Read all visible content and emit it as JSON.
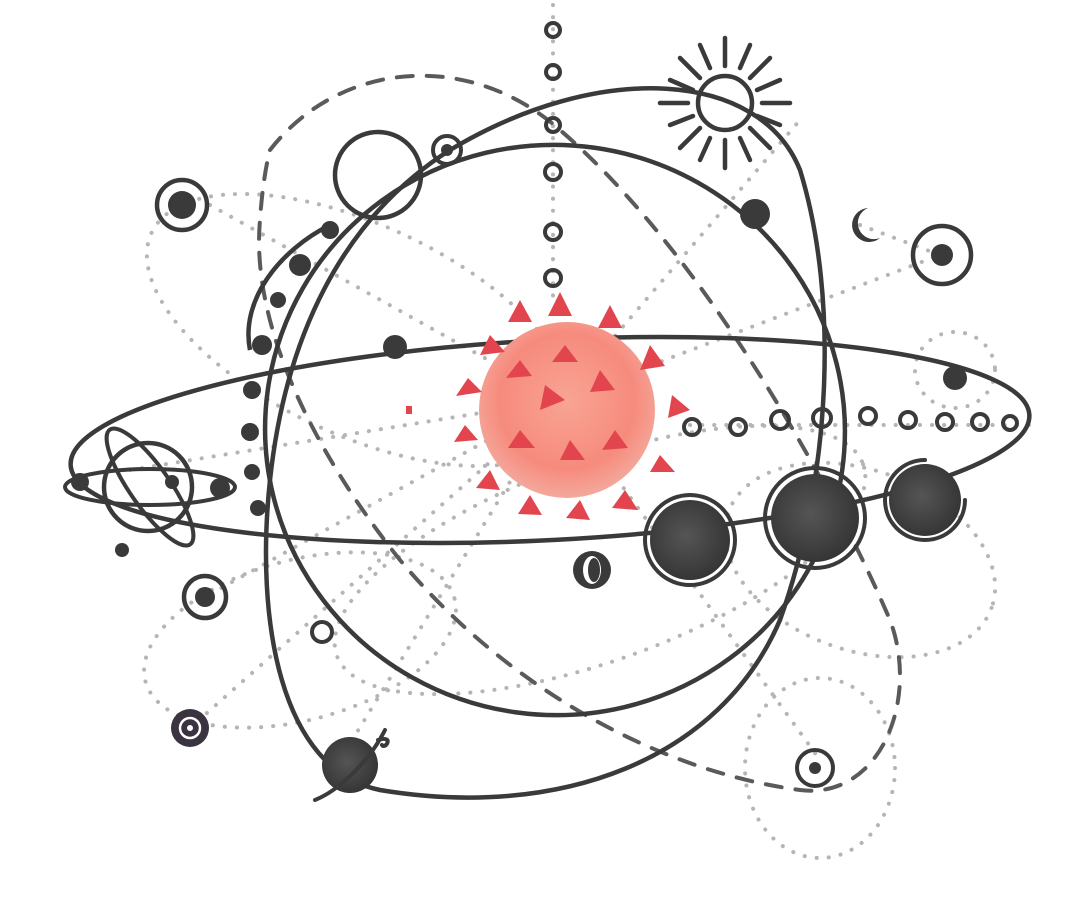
{
  "illustration": {
    "subject": "",
    "colors": {
      "ink": "#3a3a3a",
      "dotted": "#b5b5b5",
      "virus_body": "#f68b7d",
      "virus_spike": "#e2454d",
      "background": "#ffffff"
    },
    "icons": [
      "virus-icon",
      "sun-icon",
      "crescent-moon-icon",
      "atom-icon",
      "ringed-planet-icon",
      "planet-icon",
      "ring-planet-icon"
    ]
  }
}
